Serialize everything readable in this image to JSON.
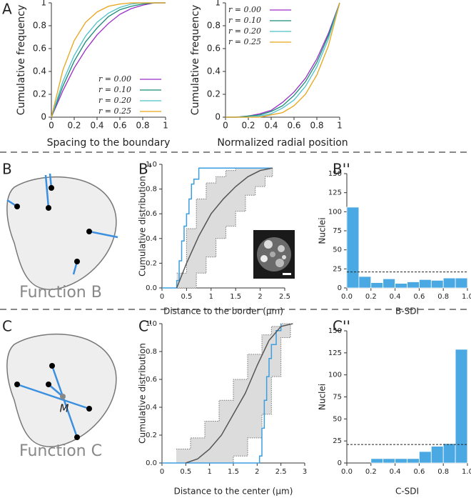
{
  "panel_labels": [
    "A",
    "B",
    "B'",
    "B''",
    "C",
    "C'",
    "C''"
  ],
  "diagrams": [
    {
      "title": "Function B"
    },
    {
      "title": "Function C",
      "center_label": "M"
    }
  ],
  "chart_data": [
    {
      "type": "line",
      "xlabel": "Spacing to the boundary",
      "ylabel": "Cumulative frequency",
      "x": [
        0,
        0.1,
        0.2,
        0.3,
        0.4,
        0.5,
        0.6,
        0.7,
        0.8,
        0.9,
        1
      ],
      "series": [
        {
          "name": "r = 0.00",
          "color": "#9a2dc6",
          "values": [
            0,
            0.23,
            0.43,
            0.59,
            0.72,
            0.82,
            0.9,
            0.95,
            0.98,
            1,
            1
          ]
        },
        {
          "name": "r = 0.10",
          "color": "#178a78",
          "values": [
            0,
            0.27,
            0.49,
            0.66,
            0.78,
            0.88,
            0.94,
            0.97,
            0.99,
            1,
            1
          ]
        },
        {
          "name": "r = 0.20",
          "color": "#4cc2c8",
          "values": [
            0,
            0.31,
            0.54,
            0.71,
            0.83,
            0.91,
            0.96,
            0.99,
            1,
            1,
            1
          ]
        },
        {
          "name": "r = 0.25",
          "color": "#e8a317",
          "values": [
            0,
            0.41,
            0.67,
            0.83,
            0.92,
            0.97,
            0.99,
            1,
            1,
            1,
            1
          ]
        }
      ],
      "xlim": [
        0,
        1
      ],
      "ylim": [
        0,
        1
      ],
      "xticks": [
        0,
        0.2,
        0.4,
        0.6,
        0.8,
        1
      ],
      "yticks": [
        0,
        0.2,
        0.4,
        0.6,
        0.8,
        1
      ],
      "legend": "lower-right"
    },
    {
      "type": "line",
      "xlabel": "Normalized radial position",
      "ylabel": "Cumulative frequency",
      "x": [
        0,
        0.1,
        0.2,
        0.3,
        0.4,
        0.5,
        0.6,
        0.7,
        0.8,
        0.9,
        1
      ],
      "series": [
        {
          "name": "r = 0.00",
          "color": "#9a2dc6",
          "values": [
            0,
            0,
            0.01,
            0.03,
            0.06,
            0.13,
            0.22,
            0.34,
            0.51,
            0.73,
            1
          ]
        },
        {
          "name": "r = 0.10",
          "color": "#178a78",
          "values": [
            0,
            0,
            0.01,
            0.02,
            0.05,
            0.1,
            0.19,
            0.31,
            0.48,
            0.71,
            1
          ]
        },
        {
          "name": "r = 0.20",
          "color": "#4cc2c8",
          "values": [
            0,
            0,
            0,
            0.01,
            0.03,
            0.08,
            0.15,
            0.27,
            0.44,
            0.68,
            1
          ]
        },
        {
          "name": "r = 0.25",
          "color": "#e8a317",
          "values": [
            0,
            0,
            0,
            0,
            0.02,
            0.04,
            0.1,
            0.2,
            0.37,
            0.62,
            1
          ]
        }
      ],
      "xlim": [
        0,
        1
      ],
      "ylim": [
        0,
        1
      ],
      "xticks": [
        0,
        0.2,
        0.4,
        0.6,
        0.8,
        1
      ],
      "yticks": [
        0,
        0.2,
        0.4,
        0.6,
        0.8,
        1
      ],
      "legend": "upper-left"
    },
    {
      "type": "step",
      "xlabel": "Distance to the border (µm)",
      "ylabel": "Cumulative distribution",
      "band": {
        "color": "#dcdcdc",
        "x": [
          0.3,
          0.5,
          0.7,
          0.9,
          1.1,
          1.3,
          1.5,
          1.7,
          1.9,
          2.1,
          2.25
        ],
        "upper": [
          0.12,
          0.48,
          0.72,
          0.85,
          0.9,
          0.95,
          0.97,
          0.97,
          0.97,
          0.97,
          0.97
        ],
        "lower": [
          0,
          0,
          0.12,
          0.25,
          0.4,
          0.5,
          0.62,
          0.75,
          0.82,
          0.9,
          0.97
        ]
      },
      "series": [
        {
          "color": "#3b9ee0",
          "step": true,
          "x": [
            0,
            0.3,
            0.35,
            0.4,
            0.45,
            0.5,
            0.55,
            0.6,
            0.65,
            0.75,
            2.25
          ],
          "values": [
            0,
            0.06,
            0.22,
            0.38,
            0.5,
            0.6,
            0.72,
            0.84,
            0.88,
            0.97,
            0.97
          ]
        },
        {
          "color": "#555555",
          "step": false,
          "x": [
            0.3,
            0.5,
            0.75,
            1,
            1.25,
            1.5,
            1.75,
            2,
            2.25
          ],
          "values": [
            0,
            0.2,
            0.42,
            0.6,
            0.72,
            0.82,
            0.9,
            0.95,
            0.97
          ]
        }
      ],
      "xlim": [
        0,
        2.5
      ],
      "ylim": [
        0,
        1
      ],
      "xticks": [
        0,
        0.5,
        1,
        1.5,
        2,
        2.5
      ],
      "yticks": [
        {
          "value": 0,
          "label": "0.0"
        },
        0.2,
        0.4,
        0.6,
        0.8,
        {
          "value": 1,
          "label": "1.0"
        }
      ]
    },
    {
      "type": "histogram",
      "xlabel": "B-SDI",
      "ylabel": "Nuclei",
      "color": "#4aa8e3",
      "bins": [
        0,
        0.1,
        0.2,
        0.3,
        0.4,
        0.5,
        0.6,
        0.7,
        0.8,
        0.9,
        1
      ],
      "values": [
        106,
        15,
        7,
        12,
        6,
        8,
        11,
        10,
        13,
        13
      ],
      "hline": 21,
      "xlim": [
        0,
        1
      ],
      "ylim": [
        0,
        150
      ],
      "xticks": [
        {
          "value": 0,
          "label": "0.0"
        },
        0.2,
        0.4,
        0.6,
        0.8,
        {
          "value": 1,
          "label": "1.0"
        }
      ],
      "yticks": [
        0,
        25,
        50,
        75,
        100,
        125,
        150
      ]
    },
    {
      "type": "step",
      "xlabel": "Distance to the center (µm)",
      "ylabel": "Cumulative distribution",
      "band": {
        "color": "#dcdcdc",
        "x": [
          0.3,
          0.6,
          0.9,
          1.2,
          1.5,
          1.8,
          2.1,
          2.3,
          2.5,
          2.7
        ],
        "upper": [
          0.1,
          0.18,
          0.3,
          0.45,
          0.6,
          0.78,
          0.92,
          0.98,
          1,
          1
        ],
        "lower": [
          0,
          0,
          0,
          0,
          0.05,
          0.18,
          0.35,
          0.62,
          0.9,
          1
        ]
      },
      "series": [
        {
          "color": "#3b9ee0",
          "step": true,
          "x": [
            0,
            2.05,
            2.1,
            2.15,
            2.2,
            2.25,
            2.3,
            2.4,
            2.5
          ],
          "values": [
            0,
            0.05,
            0.25,
            0.45,
            0.62,
            0.75,
            0.85,
            0.95,
            1
          ]
        },
        {
          "color": "#555555",
          "step": false,
          "x": [
            0.5,
            0.75,
            1,
            1.25,
            1.5,
            1.75,
            2,
            2.25,
            2.5,
            2.75
          ],
          "values": [
            0,
            0.03,
            0.1,
            0.2,
            0.35,
            0.5,
            0.7,
            0.88,
            0.98,
            1
          ]
        }
      ],
      "xlim": [
        0,
        3
      ],
      "ylim": [
        0,
        1
      ],
      "xticks": [
        0,
        0.5,
        1,
        1.5,
        2,
        2.5,
        3
      ],
      "yticks": [
        {
          "value": 0,
          "label": "0.0"
        },
        0.2,
        0.4,
        0.6,
        0.8,
        {
          "value": 1,
          "label": "1.0"
        }
      ]
    },
    {
      "type": "histogram",
      "xlabel": "C-SDI",
      "ylabel": "Nuclei",
      "color": "#4aa8e3",
      "bins": [
        0,
        0.1,
        0.2,
        0.3,
        0.4,
        0.5,
        0.6,
        0.7,
        0.8,
        0.9,
        1
      ],
      "values": [
        0,
        0,
        5,
        5,
        5,
        5,
        13,
        19,
        22,
        129
      ],
      "hline": 21,
      "xlim": [
        0,
        1
      ],
      "ylim": [
        0,
        150
      ],
      "xticks": [
        {
          "value": 0,
          "label": "0.0"
        },
        0.2,
        0.4,
        0.6,
        0.8,
        {
          "value": 1,
          "label": "1.0"
        }
      ],
      "yticks": [
        0,
        25,
        50,
        75,
        100,
        125,
        150
      ]
    }
  ]
}
